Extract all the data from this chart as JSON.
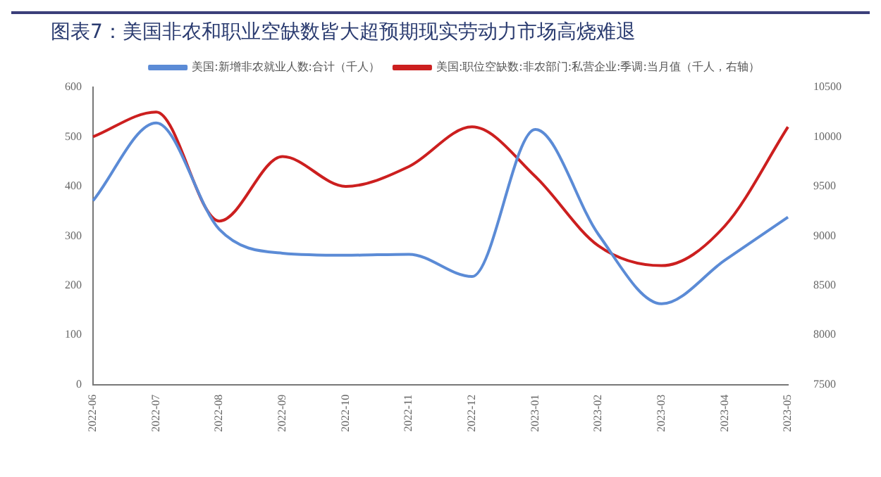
{
  "chart_data": {
    "type": "line",
    "title": "图表7：美国非农和职业空缺数皆大超预期现实劳动力市场高烧难退",
    "categories": [
      "2022-06",
      "2022-07",
      "2022-08",
      "2022-09",
      "2022-10",
      "2022-11",
      "2022-12",
      "2023-01",
      "2023-02",
      "2023-03",
      "2023-04",
      "2023-05"
    ],
    "series": [
      {
        "name": "美国:新增非农就业人数:合计（千人）",
        "color": "#5b8bd6",
        "values": [
          371,
          528,
          313,
          265,
          261,
          263,
          218,
          515,
          303,
          163,
          251,
          338
        ]
      },
      {
        "name": "美国:职位空缺数:非农部门:私营企业:季调:当月值（千人，右轴）",
        "color": "#cc1f1f",
        "axis": "y2",
        "values": [
          10000,
          10250,
          9150,
          9800,
          9500,
          9700,
          10100,
          9600,
          8900,
          8700,
          9100,
          10100
        ]
      }
    ],
    "ylim": [
      0,
      600
    ],
    "yticks": [
      0,
      100,
      200,
      300,
      400,
      500,
      600
    ],
    "y2lim": [
      7500,
      10500
    ],
    "y2ticks": [
      7500,
      8000,
      8500,
      9000,
      9500,
      10000,
      10500
    ],
    "grid": false,
    "legend": "top",
    "marker": "none",
    "line_style": "solid"
  }
}
